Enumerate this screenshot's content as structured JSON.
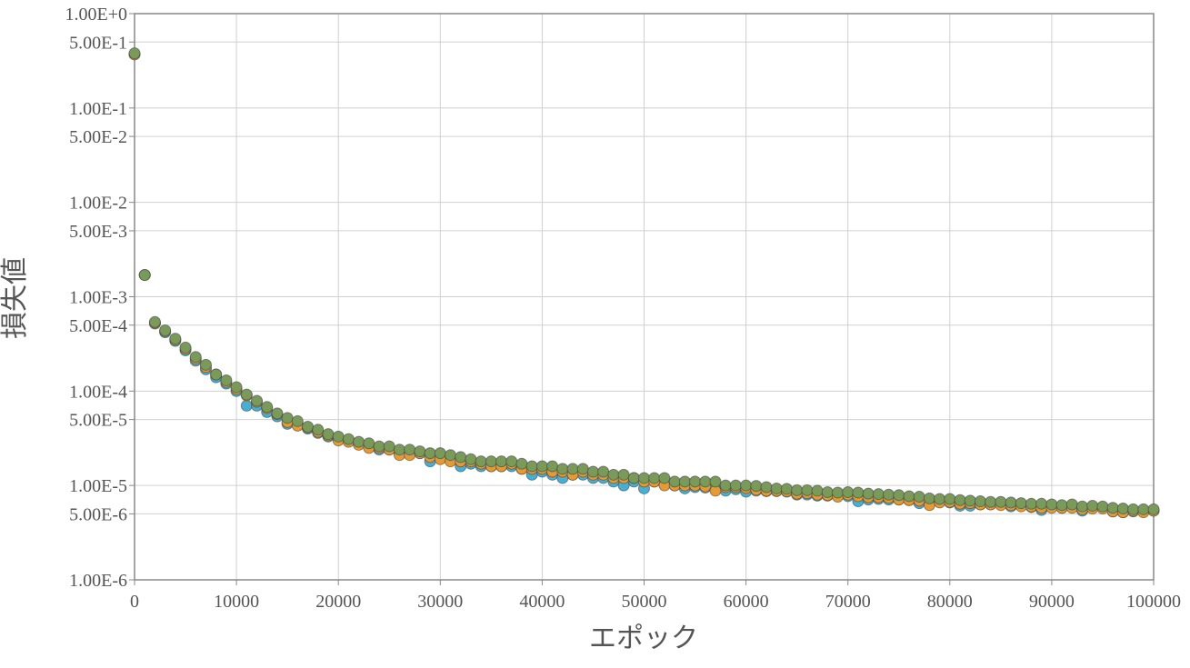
{
  "chart_data": {
    "type": "scatter",
    "title": "",
    "xlabel": "エポック",
    "ylabel": "損失値",
    "xlim": [
      0,
      100000
    ],
    "ylim": [
      1e-06,
      1
    ],
    "yscale": "log",
    "grid": true,
    "x_ticks": [
      "0",
      "10000",
      "20000",
      "30000",
      "40000",
      "50000",
      "60000",
      "70000",
      "80000",
      "90000",
      "100000"
    ],
    "y_ticks": [
      {
        "value": 1,
        "label": "1.00E+0"
      },
      {
        "value": 0.5,
        "label": "5.00E-1"
      },
      {
        "value": 0.1,
        "label": "1.00E-1"
      },
      {
        "value": 0.05,
        "label": "5.00E-2"
      },
      {
        "value": 0.01,
        "label": "1.00E-2"
      },
      {
        "value": 0.005,
        "label": "5.00E-3"
      },
      {
        "value": 0.001,
        "label": "1.00E-3"
      },
      {
        "value": 0.0005,
        "label": "5.00E-4"
      },
      {
        "value": 0.0001,
        "label": "1.00E-4"
      },
      {
        "value": 5e-05,
        "label": "5.00E-5"
      },
      {
        "value": 1e-05,
        "label": "1.00E-5"
      },
      {
        "value": 5e-06,
        "label": "5.00E-6"
      },
      {
        "value": 1e-06,
        "label": "1.00E-6"
      }
    ],
    "x": [
      0,
      1000,
      2000,
      3000,
      4000,
      5000,
      6000,
      7000,
      8000,
      9000,
      10000,
      11000,
      12000,
      13000,
      14000,
      15000,
      16000,
      17000,
      18000,
      19000,
      20000,
      21000,
      22000,
      23000,
      24000,
      25000,
      26000,
      27000,
      28000,
      29000,
      30000,
      31000,
      32000,
      33000,
      34000,
      35000,
      36000,
      37000,
      38000,
      39000,
      40000,
      41000,
      42000,
      43000,
      44000,
      45000,
      46000,
      47000,
      48000,
      49000,
      50000,
      51000,
      52000,
      53000,
      54000,
      55000,
      56000,
      57000,
      58000,
      59000,
      60000,
      61000,
      62000,
      63000,
      64000,
      65000,
      66000,
      67000,
      68000,
      69000,
      70000,
      71000,
      72000,
      73000,
      74000,
      75000,
      76000,
      77000,
      78000,
      79000,
      80000,
      81000,
      82000,
      83000,
      84000,
      85000,
      86000,
      87000,
      88000,
      89000,
      90000,
      91000,
      92000,
      93000,
      94000,
      95000,
      96000,
      97000,
      98000,
      99000,
      100000
    ],
    "series": [
      {
        "color": "#4aaed0",
        "values": [
          0.37,
          0.0017,
          0.00052,
          0.00042,
          0.00034,
          0.00027,
          0.00021,
          0.00017,
          0.00014,
          0.00012,
          0.0001,
          7e-05,
          7e-05,
          6e-05,
          5.4e-05,
          4.5e-05,
          4.4e-05,
          4e-05,
          3.6e-05,
          3.3e-05,
          3.1e-05,
          3e-05,
          2.8e-05,
          2.6e-05,
          2.4e-05,
          2.4e-05,
          2.2e-05,
          2.2e-05,
          2.2e-05,
          1.8e-05,
          2e-05,
          1.9e-05,
          1.6e-05,
          1.7e-05,
          1.6e-05,
          1.6e-05,
          1.6e-05,
          1.6e-05,
          1.5e-05,
          1.3e-05,
          1.4e-05,
          1.3e-05,
          1.2e-05,
          1.3e-05,
          1.3e-05,
          1.2e-05,
          1.2e-05,
          1.1e-05,
          1e-05,
          1.1e-05,
          9.3e-06,
          1.1e-05,
          1.1e-05,
          1e-05,
          9.3e-06,
          9.6e-06,
          9.5e-06,
          9.3e-06,
          8.8e-06,
          9.1e-06,
          8.6e-06,
          8.8e-06,
          8.7e-06,
          8.7e-06,
          8.6e-06,
          8e-06,
          8e-06,
          7.8e-06,
          7.8e-06,
          7.9e-06,
          7.7e-06,
          6.8e-06,
          7.1e-06,
          7.2e-06,
          7.1e-06,
          7.1e-06,
          7e-06,
          6.5e-06,
          6.6e-06,
          6.7e-06,
          6.6e-06,
          6.1e-06,
          6.1e-06,
          6.3e-06,
          6.3e-06,
          6.4e-06,
          6e-06,
          6.1e-06,
          5.9e-06,
          5.5e-06,
          6e-06,
          5.8e-06,
          6e-06,
          5.4e-06,
          5.8e-06,
          5.9e-06,
          5.3e-06,
          5.2e-06,
          5.3e-06,
          5.3e-06,
          5.4e-06
        ]
      },
      {
        "color": "#e39a37",
        "values": [
          0.37,
          0.0017,
          0.00053,
          0.00043,
          0.00035,
          0.00028,
          0.00022,
          0.00018,
          0.00015,
          0.000125,
          0.000105,
          9e-05,
          7.7e-05,
          6.6e-05,
          5.7e-05,
          4.7e-05,
          4.3e-05,
          4.1e-05,
          3.7e-05,
          3.4e-05,
          3e-05,
          2.9e-05,
          2.7e-05,
          2.5e-05,
          2.5e-05,
          2.4e-05,
          2.1e-05,
          2.1e-05,
          2.2e-05,
          2e-05,
          1.9e-05,
          1.8e-05,
          1.8e-05,
          1.8e-05,
          1.7e-05,
          1.6e-05,
          1.6e-05,
          1.7e-05,
          1.5e-05,
          1.5e-05,
          1.5e-05,
          1.4e-05,
          1.4e-05,
          1.3e-05,
          1.4e-05,
          1.3e-05,
          1.3e-05,
          1.2e-05,
          1.2e-05,
          1.2e-05,
          1.1e-05,
          1.1e-05,
          1e-05,
          1e-05,
          1e-05,
          1e-05,
          9.8e-06,
          8.8e-06,
          9.6e-06,
          9.6e-06,
          9.4e-06,
          9e-06,
          8.8e-06,
          8.8e-06,
          8.7e-06,
          8.2e-06,
          8.3e-06,
          8e-06,
          7.9e-06,
          7.6e-06,
          8e-06,
          7.7e-06,
          7.5e-06,
          7.5e-06,
          7.4e-06,
          7.1e-06,
          7e-06,
          6.9e-06,
          6.2e-06,
          6.6e-06,
          6.7e-06,
          6.4e-06,
          6.5e-06,
          6.3e-06,
          6.3e-06,
          6.2e-06,
          6.2e-06,
          6e-06,
          6e-06,
          5.8e-06,
          5.8e-06,
          5.8e-06,
          5.8e-06,
          5.6e-06,
          5.7e-06,
          5.7e-06,
          5.3e-06,
          5.2e-06,
          5.4e-06,
          5.2e-06,
          5.4e-06
        ]
      },
      {
        "color": "#7a9a5a",
        "values": [
          0.38,
          0.0017,
          0.00054,
          0.00044,
          0.00036,
          0.00029,
          0.00023,
          0.00019,
          0.00015,
          0.00013,
          0.00011,
          9.2e-05,
          7.9e-05,
          6.8e-05,
          5.8e-05,
          5.2e-05,
          4.8e-05,
          4.2e-05,
          3.9e-05,
          3.5e-05,
          3.3e-05,
          3.1e-05,
          2.9e-05,
          2.8e-05,
          2.6e-05,
          2.6e-05,
          2.4e-05,
          2.4e-05,
          2.3e-05,
          2.2e-05,
          2.2e-05,
          2.1e-05,
          2e-05,
          1.9e-05,
          1.8e-05,
          1.8e-05,
          1.8e-05,
          1.8e-05,
          1.7e-05,
          1.6e-05,
          1.6e-05,
          1.6e-05,
          1.5e-05,
          1.5e-05,
          1.5e-05,
          1.4e-05,
          1.4e-05,
          1.3e-05,
          1.3e-05,
          1.2e-05,
          1.2e-05,
          1.2e-05,
          1.2e-05,
          1.1e-05,
          1.1e-05,
          1.1e-05,
          1.1e-05,
          1.1e-05,
          1e-05,
          1e-05,
          1e-05,
          9.9e-06,
          9.6e-06,
          9.3e-06,
          9.2e-06,
          8.9e-06,
          8.9e-06,
          8.8e-06,
          8.5e-06,
          8.4e-06,
          8.5e-06,
          8.4e-06,
          8.2e-06,
          8.1e-06,
          8e-06,
          7.9e-06,
          7.7e-06,
          7.6e-06,
          7.3e-06,
          7.2e-06,
          7.2e-06,
          7e-06,
          6.9e-06,
          6.8e-06,
          6.7e-06,
          6.7e-06,
          6.6e-06,
          6.5e-06,
          6.4e-06,
          6.4e-06,
          6.3e-06,
          6.2e-06,
          6.3e-06,
          6e-06,
          6.1e-06,
          6e-06,
          5.8e-06,
          5.7e-06,
          5.6e-06,
          5.6e-06,
          5.6e-06
        ]
      }
    ]
  }
}
